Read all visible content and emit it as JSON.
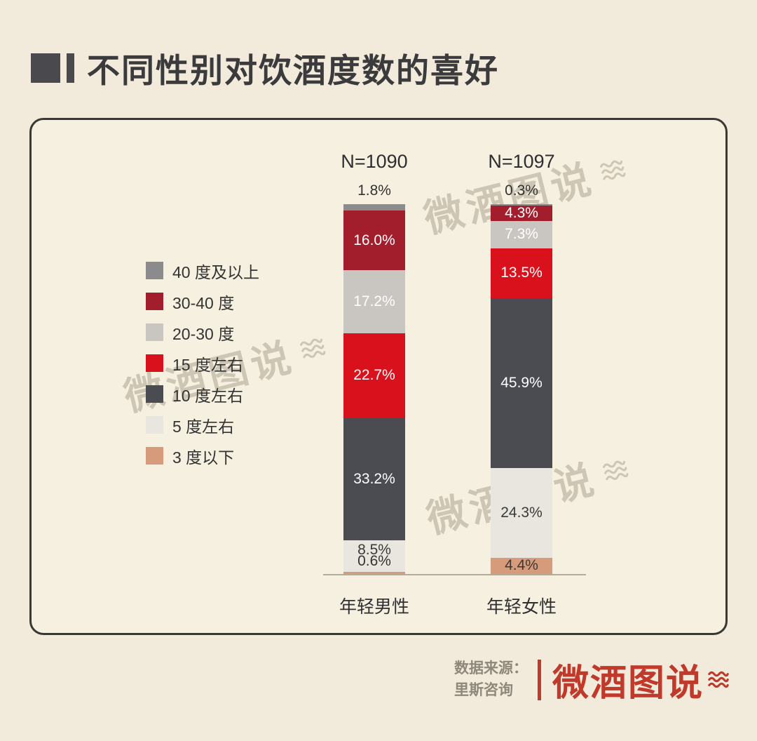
{
  "title": {
    "text": "不同性别对饮酒度数的喜好"
  },
  "watermark": {
    "text": "微酒图说"
  },
  "footer": {
    "source_line1": "数据来源：",
    "source_line2": "里斯咨询",
    "logo_text": "微酒图说"
  },
  "colors": {
    "page_bg": "#f2ebdb",
    "card_bg": "#f6f0e0",
    "card_border": "#3a3833",
    "accent_red": "#c0392b",
    "axis_line": "#b3ab9b"
  },
  "chart_data": {
    "type": "bar",
    "stacked": true,
    "unit": "%",
    "value_suffix": "%",
    "ylim": [
      0,
      100
    ],
    "legend_position": "left",
    "categories": [
      "年轻男性",
      "年轻女性"
    ],
    "group_n_labels": [
      "N=1090",
      "N=1097"
    ],
    "series": [
      {
        "name": "40 度及以上",
        "color": "#8b8b8d",
        "label_color": "#ffffff",
        "values": [
          1.8,
          0.3
        ]
      },
      {
        "name": "30-40 度",
        "color": "#a31e2d",
        "label_color": "#ffffff",
        "values": [
          16.0,
          4.3
        ]
      },
      {
        "name": "20-30 度",
        "color": "#c9c5c1",
        "label_color": "#ffffff",
        "values": [
          17.2,
          7.3
        ]
      },
      {
        "name": "15 度左右",
        "color": "#d8111c",
        "label_color": "#ffffff",
        "values": [
          22.7,
          13.5
        ]
      },
      {
        "name": "10 度左右",
        "color": "#4a4c52",
        "label_color": "#ffffff",
        "values": [
          33.2,
          45.9
        ]
      },
      {
        "name": "5 度左右",
        "color": "#e9e5df",
        "label_color": "#3a3a3a",
        "values": [
          8.5,
          24.3
        ]
      },
      {
        "name": "3 度以下",
        "color": "#d69b7b",
        "label_color": "#3a3a3a",
        "values": [
          0.6,
          4.4
        ]
      }
    ]
  }
}
